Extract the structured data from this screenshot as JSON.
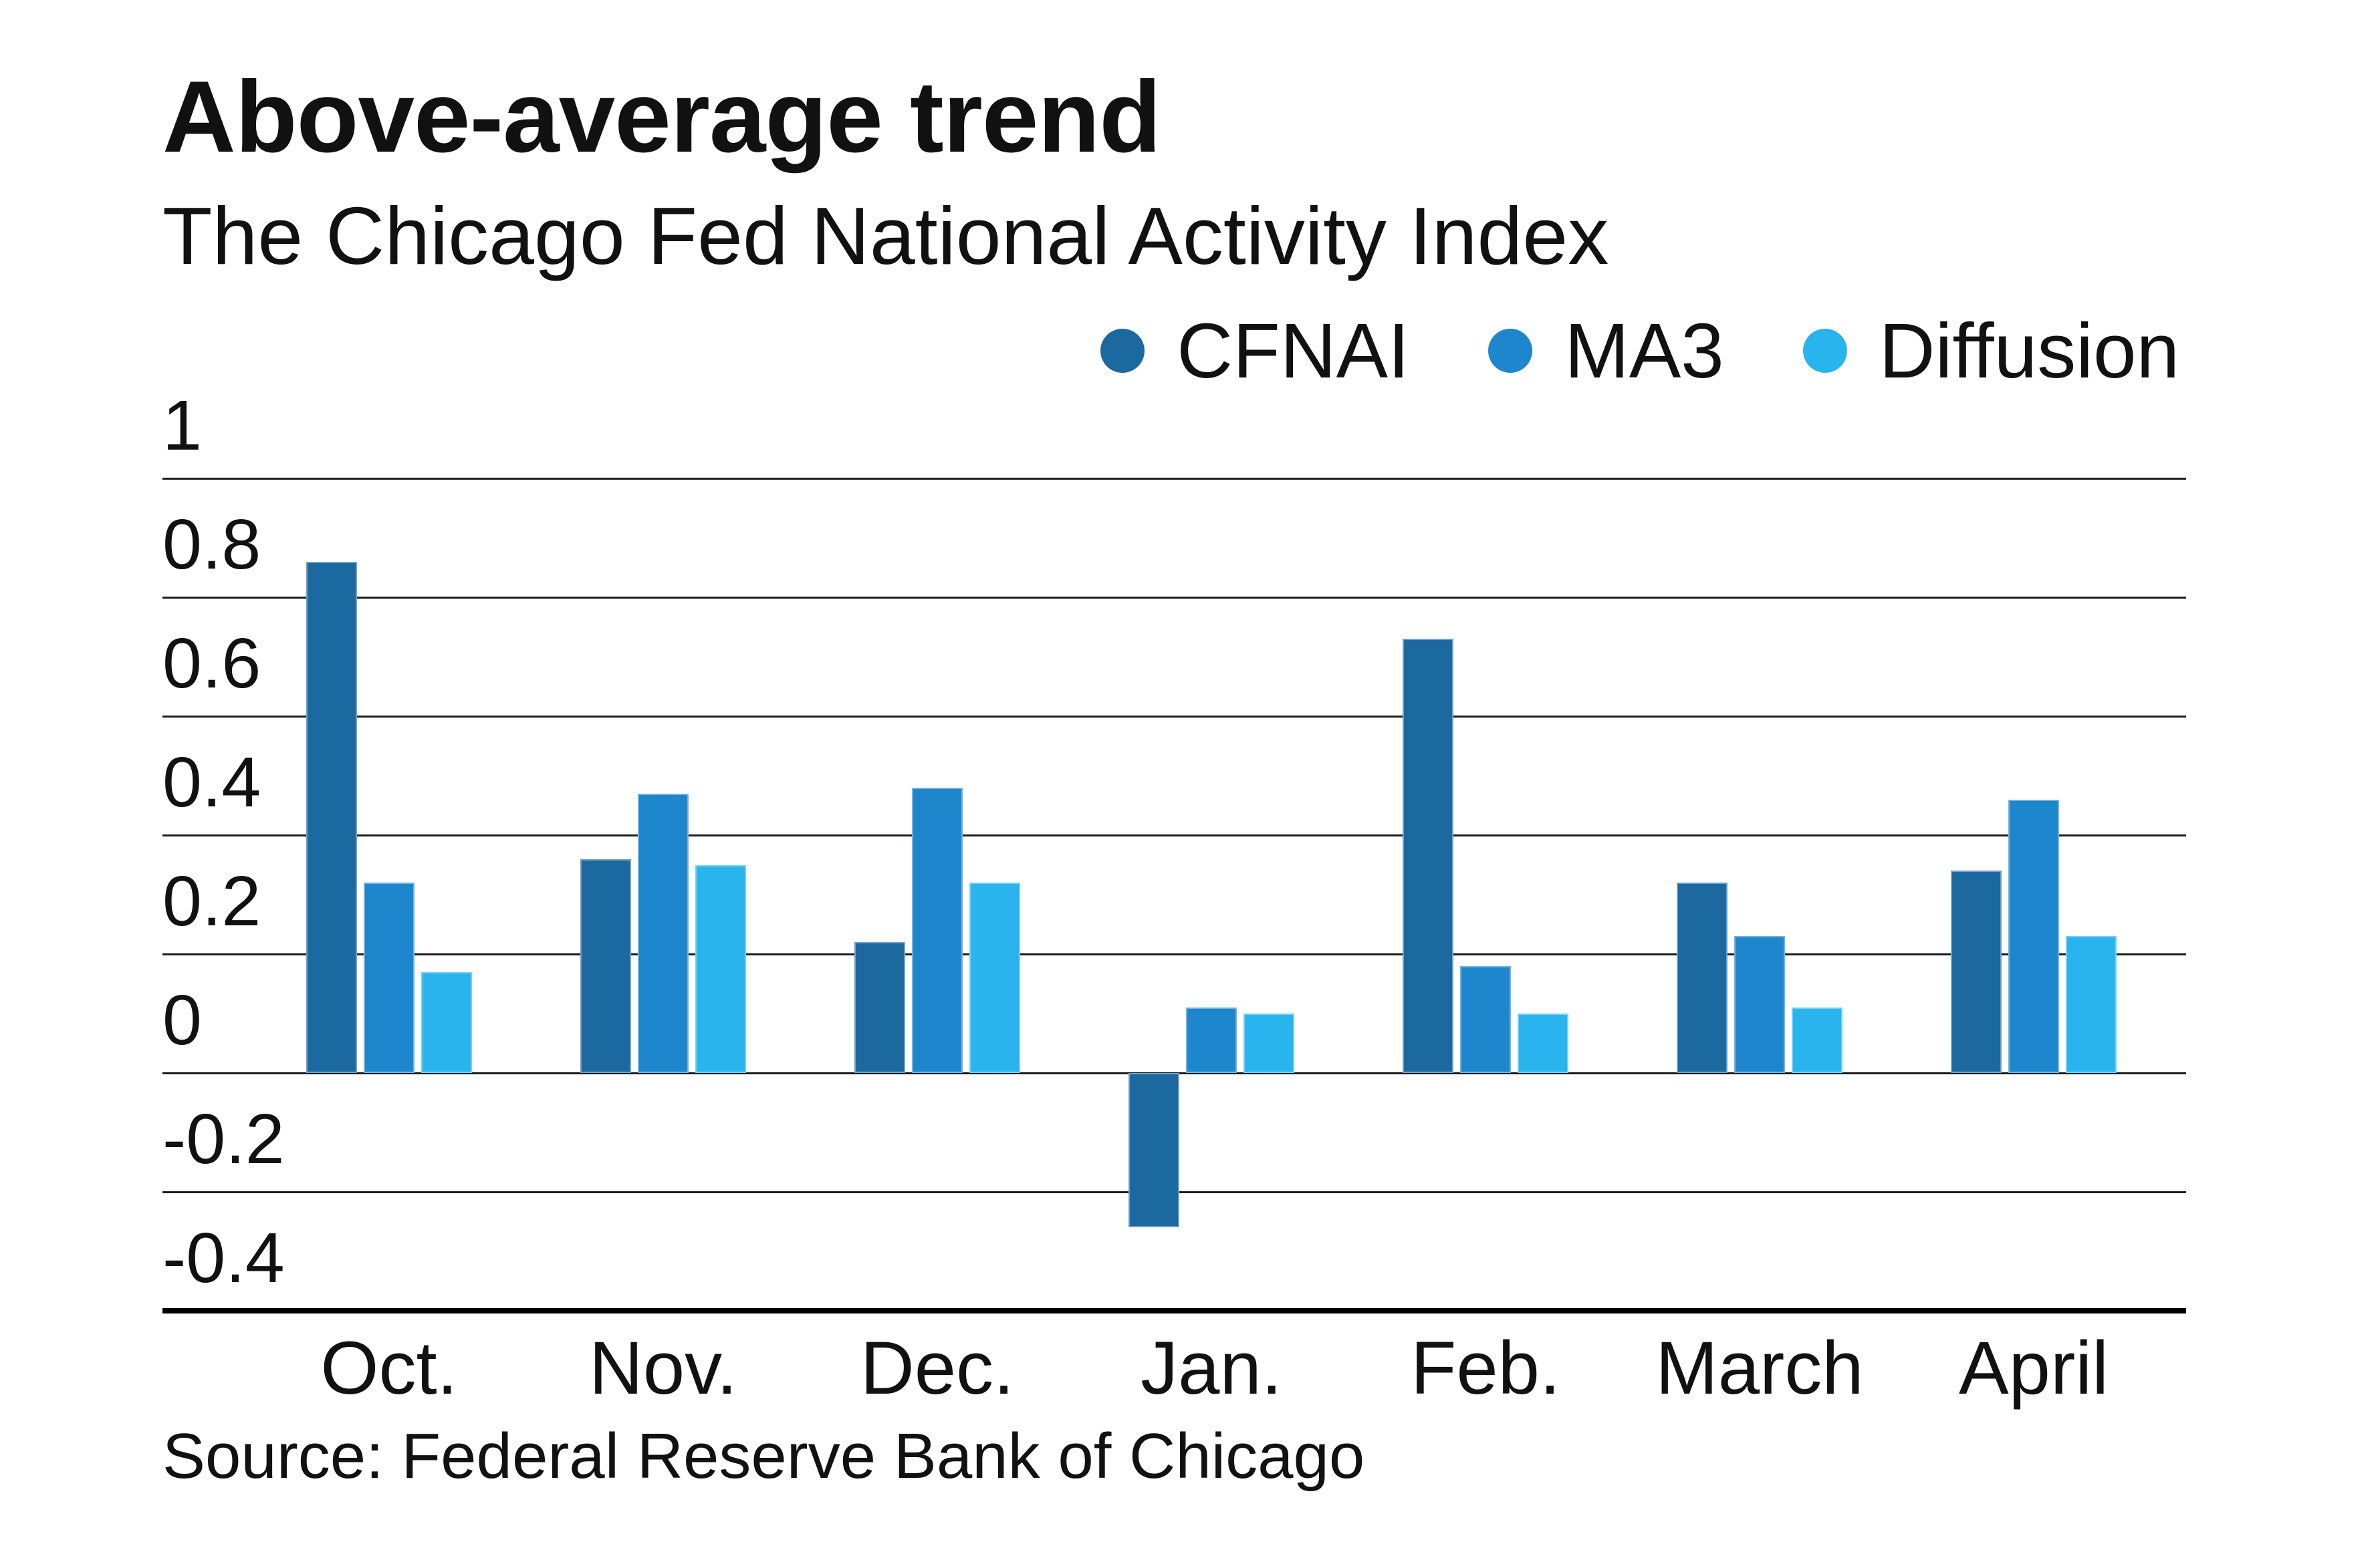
{
  "header": {
    "title": "Above-average trend",
    "subtitle": "The Chicago Fed National Activity Index"
  },
  "legend": {
    "position": "top-right",
    "items": [
      {
        "label": "CFNAI",
        "color": "#1c69a0"
      },
      {
        "label": "MA3",
        "color": "#1e86cd"
      },
      {
        "label": "Diffusion",
        "color": "#29b4ee"
      }
    ]
  },
  "source": "Source: Federal Reserve Bank of Chicago",
  "chart_data": {
    "type": "bar",
    "title": "Above-average trend",
    "subtitle": "The Chicago Fed National Activity Index",
    "xlabel": "",
    "ylabel": "",
    "categories": [
      "Oct.",
      "Nov.",
      "Dec.",
      "Jan.",
      "Feb.",
      "March",
      "April"
    ],
    "series": [
      {
        "name": "CFNAI",
        "color": "#1c69a0",
        "values": [
          0.86,
          0.36,
          0.22,
          -0.26,
          0.73,
          0.32,
          0.34
        ]
      },
      {
        "name": "MA3",
        "color": "#1e86cd",
        "values": [
          0.32,
          0.47,
          0.48,
          0.11,
          0.18,
          0.23,
          0.46
        ]
      },
      {
        "name": "Diffusion",
        "color": "#29b4ee",
        "values": [
          0.17,
          0.35,
          0.32,
          0.1,
          0.1,
          0.11,
          0.23
        ]
      }
    ],
    "ylim": [
      -0.4,
      1
    ],
    "yticks": [
      1,
      0.8,
      0.6,
      0.4,
      0.2,
      0,
      -0.2,
      -0.4
    ],
    "ytick_labels": [
      "1",
      "0.8",
      "0.6",
      "0.4",
      "0.2",
      "0",
      "-0.2",
      "-0.4"
    ],
    "grid": true,
    "legend_position": "top-right",
    "grid_color": "#1a1a1a",
    "axis_color": "#000000",
    "text_color": "#111111",
    "background_color": "#ffffff"
  }
}
